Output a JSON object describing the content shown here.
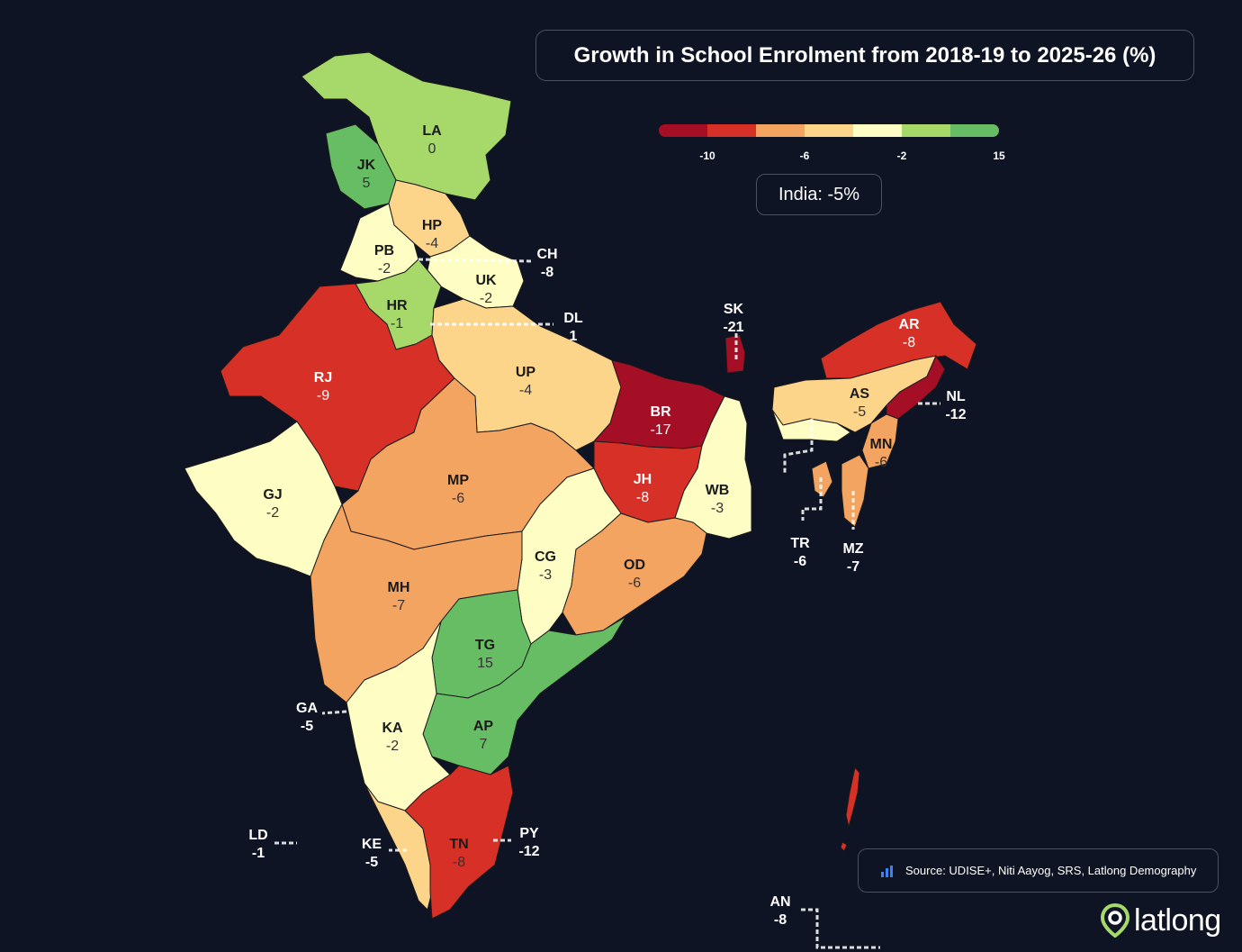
{
  "title": "Growth in School Enrolment from 2018-19 to 2025-26 (%)",
  "legend": {
    "segments": [
      {
        "color": "#a50f25"
      },
      {
        "color": "#d73027"
      },
      {
        "color": "#f4a461"
      },
      {
        "color": "#fdd58a"
      },
      {
        "color": "#fefdc4"
      },
      {
        "color": "#a6d96a"
      },
      {
        "color": "#66bd63"
      }
    ],
    "ticks": [
      "-10",
      "-6",
      "-2",
      "15"
    ]
  },
  "national": "India: -5%",
  "source": "Source: UDISE+, Niti Aayog, SRS, Latlong Demography",
  "brand": "latlong",
  "states": [
    {
      "code": "LA",
      "value": "0"
    },
    {
      "code": "JK",
      "value": "5"
    },
    {
      "code": "HP",
      "value": "-4"
    },
    {
      "code": "PB",
      "value": "-2"
    },
    {
      "code": "CH",
      "value": "-8"
    },
    {
      "code": "UK",
      "value": "-2"
    },
    {
      "code": "HR",
      "value": "-1"
    },
    {
      "code": "DL",
      "value": "1"
    },
    {
      "code": "RJ",
      "value": "-9"
    },
    {
      "code": "UP",
      "value": "-4"
    },
    {
      "code": "BR",
      "value": "-17"
    },
    {
      "code": "SK",
      "value": "-21"
    },
    {
      "code": "AR",
      "value": "-8"
    },
    {
      "code": "AS",
      "value": "-5"
    },
    {
      "code": "NL",
      "value": "-12"
    },
    {
      "code": "MN",
      "value": "-6"
    },
    {
      "code": "TR",
      "value": "-6"
    },
    {
      "code": "MZ",
      "value": "-7"
    },
    {
      "code": "JH",
      "value": "-8"
    },
    {
      "code": "WB",
      "value": "-3"
    },
    {
      "code": "GJ",
      "value": "-2"
    },
    {
      "code": "MP",
      "value": "-6"
    },
    {
      "code": "CG",
      "value": "-3"
    },
    {
      "code": "OD",
      "value": "-6"
    },
    {
      "code": "MH",
      "value": "-7"
    },
    {
      "code": "TG",
      "value": "15"
    },
    {
      "code": "AP",
      "value": "7"
    },
    {
      "code": "GA",
      "value": "-5"
    },
    {
      "code": "KA",
      "value": "-2"
    },
    {
      "code": "LD",
      "value": "-1"
    },
    {
      "code": "KE",
      "value": "-5"
    },
    {
      "code": "TN",
      "value": "-8"
    },
    {
      "code": "PY",
      "value": "-12"
    },
    {
      "code": "AN",
      "value": "-8"
    }
  ]
}
